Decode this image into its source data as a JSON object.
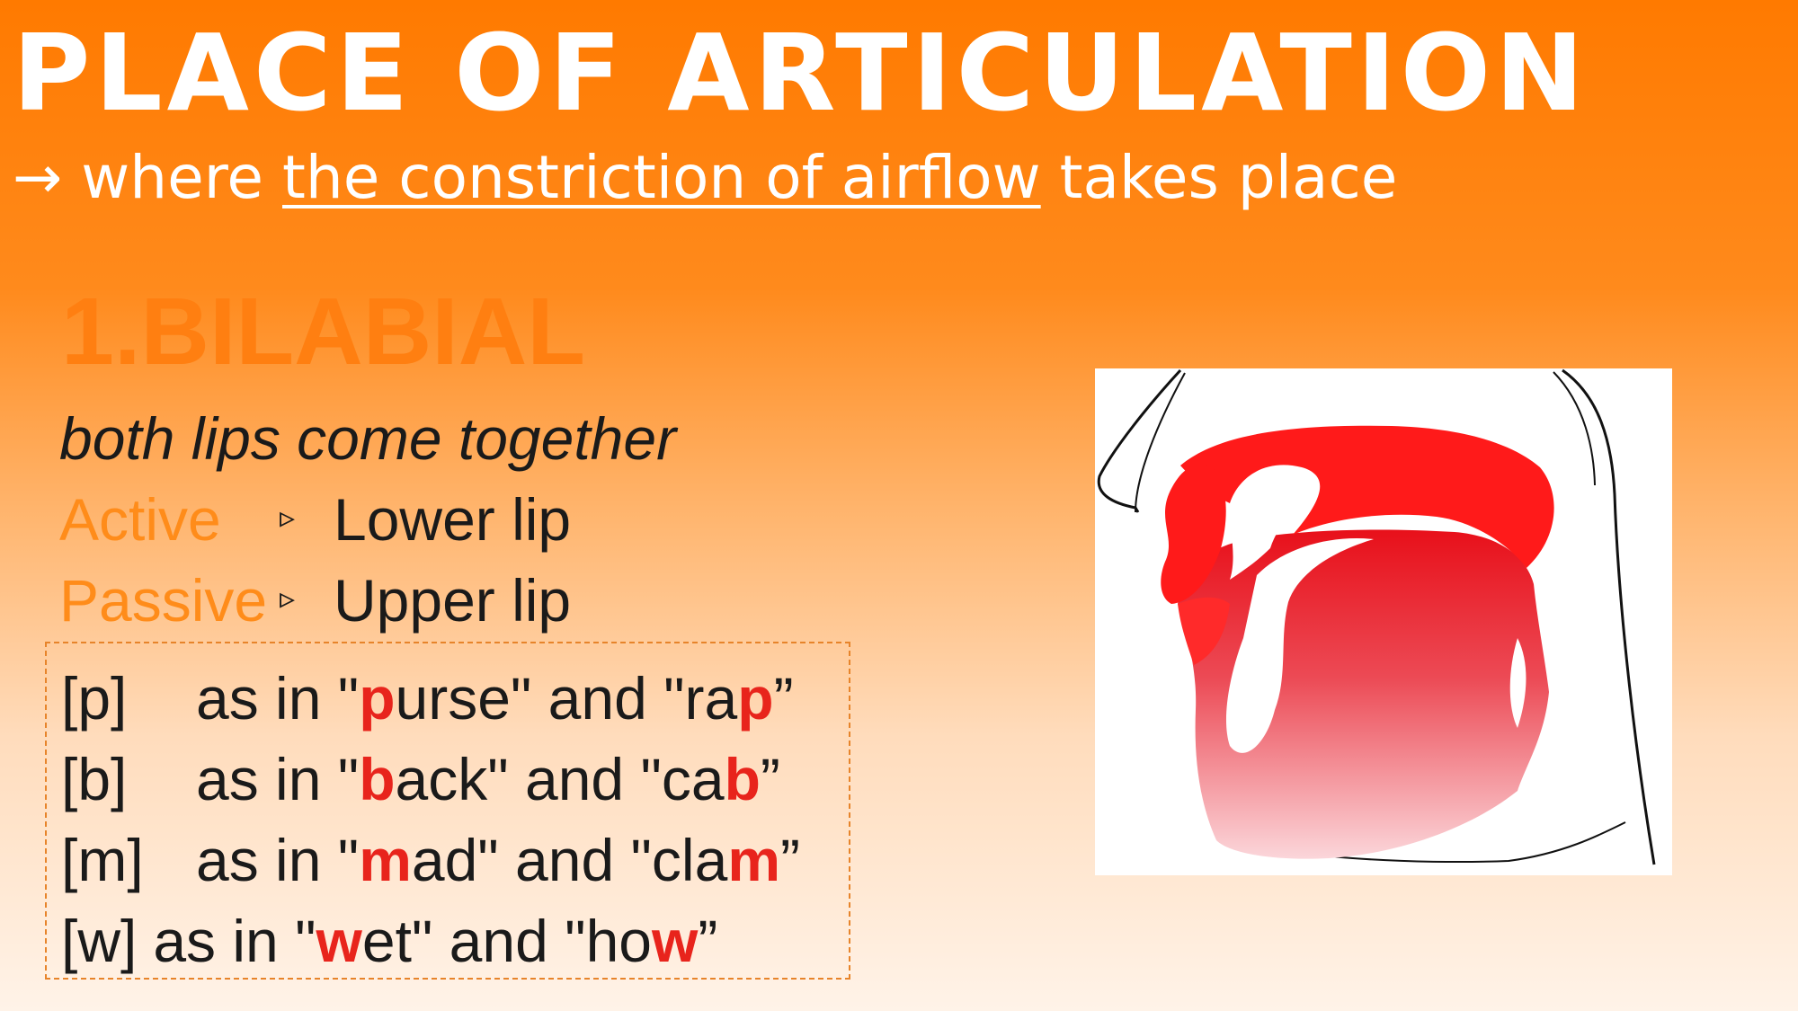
{
  "title": "PLACE OF ARTICULATION",
  "subtitle": {
    "arrow": "→",
    "pre": "where",
    "underlined": "the constriction of airflow",
    "post": "takes place"
  },
  "heading": "1.BILABIAL",
  "definition": "both lips come together",
  "articulators": [
    {
      "label": "Active",
      "arrow": "▹",
      "value": "Lower lip"
    },
    {
      "label": "Passive",
      "arrow": "▹",
      "value": "Upper lip"
    }
  ],
  "examples": [
    {
      "symbol": "[p]",
      "text1": "as in \"",
      "hl1": "p",
      "text2": "urse\" and \"ra",
      "hl2": "p",
      "text3": "”"
    },
    {
      "symbol": "[b]",
      "text1": "as in \"",
      "hl1": "b",
      "text2": "ack\" and \"ca",
      "hl2": "b",
      "text3": "”"
    },
    {
      "symbol": "[m]",
      "text1": "as in \"",
      "hl1": "m",
      "text2": "ad\" and \"cla",
      "hl2": "m",
      "text3": "”"
    },
    {
      "symbol": "[w]",
      "text1": "as in \"",
      "hl1": "w",
      "text2": "et\" and \"ho",
      "hl2": "w",
      "text3": "”"
    }
  ],
  "colors": {
    "background_top": "#ff7a00",
    "heading": "#ff7f11",
    "role_label": "#ff8c1a",
    "highlight": "#e8241c",
    "diagram_red": "#ff1a1a"
  },
  "diagram_icon": "vocal-tract-bilabial-diagram"
}
